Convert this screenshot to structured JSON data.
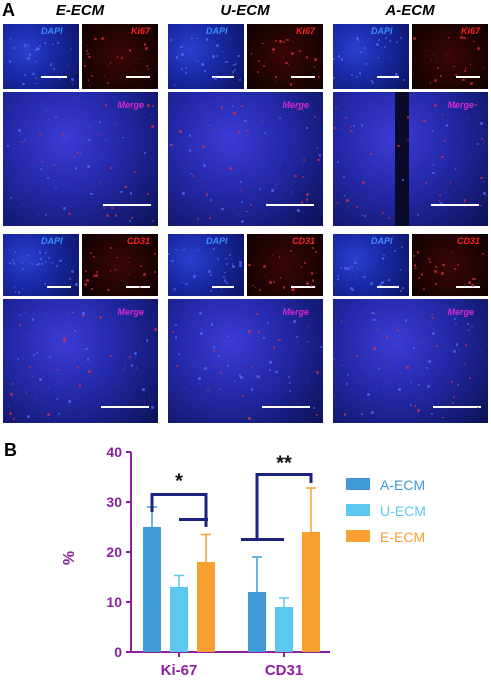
{
  "panel_a": {
    "letter": "A",
    "columns": [
      "E-ECM",
      "U-ECM",
      "A-ECM"
    ],
    "dapi_label": "DAPI",
    "ki67_label": "Ki67",
    "cd31_label": "CD31",
    "merge_label": "Merge"
  },
  "panel_b": {
    "letter": "B"
  },
  "colors": {
    "a_ecm": "#3f9ad6",
    "u_ecm": "#5cc8f2",
    "e_ecm": "#f7a030",
    "axis": "#8a1fa0",
    "bracket": "#1a237e"
  },
  "chart_data": {
    "type": "bar",
    "categories": [
      "Ki-67",
      "CD31"
    ],
    "series": [
      {
        "name": "A-ECM",
        "values": [
          25,
          12
        ],
        "errors": [
          4,
          7
        ]
      },
      {
        "name": "U-ECM",
        "values": [
          13,
          9
        ],
        "errors": [
          2.3,
          1.8
        ]
      },
      {
        "name": "E-ECM",
        "values": [
          18,
          24
        ],
        "errors": [
          5.5,
          8.8
        ]
      }
    ],
    "ylabel": "%",
    "ylim": [
      0,
      40
    ],
    "yticks": [
      "0",
      "10",
      "20",
      "30",
      "40"
    ],
    "significance": [
      "*",
      "**"
    ],
    "legend_position": "right"
  }
}
